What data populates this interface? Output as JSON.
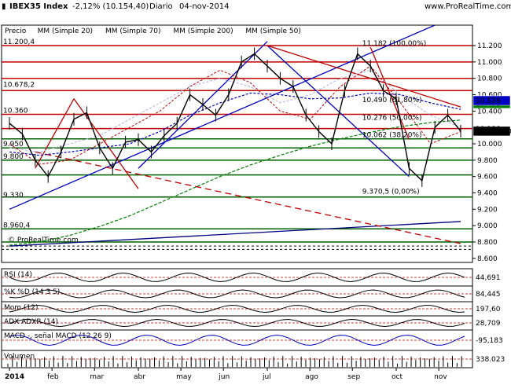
{
  "header": {
    "symbol": "IBEX35 Index",
    "change": "-2,12% (10.154,40)",
    "period": "Diario",
    "date": "04-nov-2014",
    "site": "www.ProRealTime.com"
  },
  "chart_data": {
    "type": "line",
    "title": "IBEX35 Index",
    "price_legend": [
      "Precio",
      "MM (Simple 20)",
      "MM (Simple 70)",
      "MM (Simple 200)",
      "MM (Simple 50)"
    ],
    "colors": {
      "price": "#000000",
      "ma20": "#c00000",
      "ma70": "#0000c0",
      "ma200": "#008000",
      "ma50": "#b0b0e0",
      "hline": "#c00000",
      "gline": "#006000",
      "blueline": "#000080"
    },
    "watermark": "© ProRealTime.com",
    "x_ticks": [
      "2014",
      "feb",
      "mar",
      "abr",
      "may",
      "jun",
      "jul",
      "ago",
      "sep",
      "oct",
      "nov"
    ],
    "y_ticks": [
      "11.200",
      "11.000",
      "10.800",
      "10.600",
      "10.400",
      "10.200",
      "10.000",
      "9.800",
      "9.600",
      "9.400",
      "9.200",
      "9.000",
      "8.800",
      "8.600"
    ],
    "ylim": [
      8550,
      11450
    ],
    "price_tags": [
      {
        "value": 10520,
        "text": "10.520",
        "bg": "#ffffff",
        "fg": "#b0b0b0"
      },
      {
        "value": 10491,
        "text": "10.491",
        "bg": "#008000",
        "fg": "#ffffff"
      },
      {
        "value": 10186,
        "text": "10.186",
        "bg": "#ffffff",
        "fg": "#c00000"
      },
      {
        "value": 10528,
        "text": "10.528",
        "bg": "#0000c0",
        "fg": "#ffffff"
      },
      {
        "value": 10154.4,
        "text": "10.154,40",
        "bg": "#000000",
        "fg": "#ffffff"
      }
    ],
    "level_labels": [
      {
        "value": 11200,
        "text": "11.200,4"
      },
      {
        "value": 10678,
        "text": "10.678,2"
      },
      {
        "value": 10360,
        "text": "10.360"
      },
      {
        "value": 9950,
        "text": "9.950"
      },
      {
        "value": 9800,
        "text": "9.800"
      },
      {
        "value": 9330,
        "text": "9.330"
      },
      {
        "value": 8960,
        "text": "8.960,4"
      }
    ],
    "fib_labels": [
      {
        "value": 11182,
        "text": "11.182 (100,00%)"
      },
      {
        "value": 10490,
        "text": "10.490 (61,80%)"
      },
      {
        "value": 10276,
        "text": "10.276 (50,00%)"
      },
      {
        "value": 10062,
        "text": "10.062 (38,20%)"
      },
      {
        "value": 9370.5,
        "text": "9.370,5 (0,00%)"
      }
    ],
    "red_levels": [
      11200,
      11000,
      10800,
      10650,
      10360,
      10186
    ],
    "green_levels": [
      10060,
      9950,
      9800,
      9620,
      9350,
      8960,
      8800
    ],
    "dashed_levels": [
      8750,
      8710
    ],
    "series": [
      {
        "name": "Precio",
        "values": [
          10250,
          10120,
          9800,
          9600,
          9900,
          10300,
          10380,
          9950,
          9700,
          10020,
          10050,
          9900,
          10100,
          10250,
          10600,
          10480,
          10350,
          10600,
          11000,
          11100,
          10950,
          10800,
          10700,
          10350,
          10150,
          10000,
          10650,
          11100,
          10950,
          10650,
          10550,
          9700,
          9550,
          10200,
          10350,
          10154.4
        ]
      }
    ],
    "indicators": [
      {
        "label": "RSI (14)",
        "value": "44,691"
      },
      {
        "label": "%K  %D (14 3 5)",
        "value": "84,445"
      },
      {
        "label": "Mom (12)",
        "value": "197,60"
      },
      {
        "label": "ADX  ADXR (14)",
        "value": "28,709"
      },
      {
        "label": "MACD -, señal  MACD (12 26 9)",
        "value": "-95,183"
      },
      {
        "label": "Volumen",
        "value": "338.023"
      }
    ]
  }
}
